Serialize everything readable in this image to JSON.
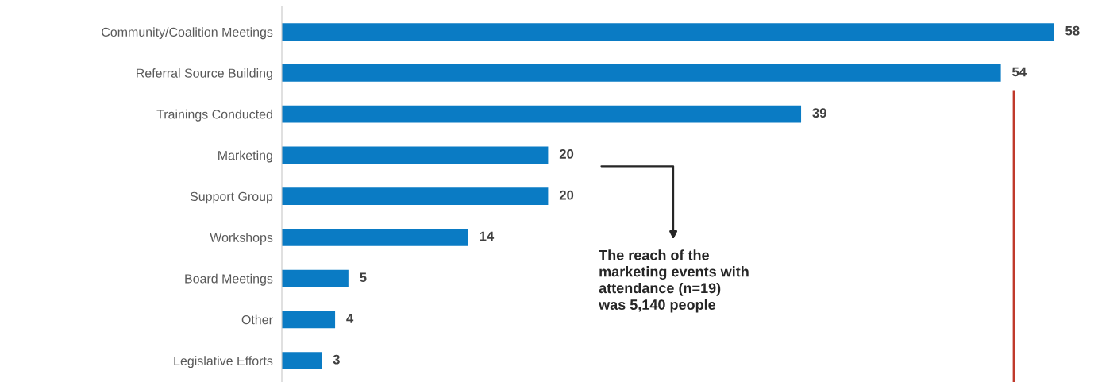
{
  "chart_data": {
    "type": "bar",
    "orientation": "horizontal",
    "categories": [
      "Community/Coalition Meetings",
      "Referral Source Building",
      "Trainings Conducted",
      "Marketing",
      "Support Group",
      "Workshops",
      "Board Meetings",
      "Other",
      "Legislative Efforts"
    ],
    "values": [
      58,
      54,
      39,
      20,
      20,
      14,
      5,
      4,
      3
    ],
    "color": "#0a7bc4",
    "data_labels": true,
    "tick_labels": "y",
    "grid": false,
    "legend": false,
    "annotations": [
      "The reach of the\nmarketing events with\nattendance (n=19)\nwas 5,140 people"
    ]
  }
}
